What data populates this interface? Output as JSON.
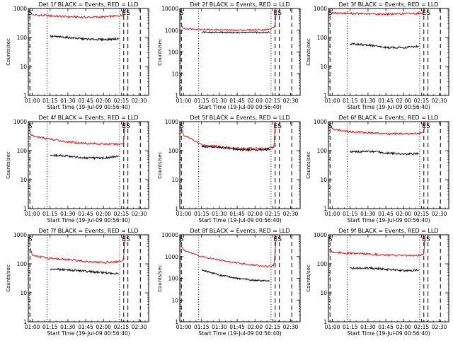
{
  "chart_data": [
    {
      "type": "line",
      "title": "Det 1f BLACK = Events, RED = LLD",
      "xlabel": "Start Time (19-Jul-09 00:56:40)",
      "ylabel": "Counts/sec",
      "yscale": "log",
      "ylim": [
        1,
        1000
      ],
      "xlim": [
        "00:56:40",
        "02:38:00"
      ],
      "x_ticks": [
        "01:00",
        "01:15",
        "01:30",
        "01:45",
        "02:00",
        "02:15",
        "02:30"
      ],
      "y_ticks": [
        "1",
        "10",
        "100",
        "1000"
      ],
      "markers": [
        {
          "label": "S",
          "time": "00:58:00",
          "style": "dashed"
        },
        {
          "label": "",
          "time": "01:12:30",
          "style": "dotted"
        },
        {
          "label": "",
          "time": "02:13:30",
          "style": "dotted"
        },
        {
          "label": "E",
          "time": "02:17:00",
          "style": "dashed"
        },
        {
          "label": "S",
          "time": "02:20:30",
          "style": "dashed"
        },
        {
          "label": "",
          "time": "02:31:00",
          "style": "dashed"
        }
      ],
      "series": [
        {
          "color": "#e00000",
          "x": [
            "01:00",
            "01:15",
            "01:30",
            "01:45",
            "02:00",
            "02:13",
            "02:17",
            "02:19"
          ],
          "y": [
            600,
            560,
            520,
            500,
            510,
            560,
            600,
            1000
          ]
        },
        {
          "color": "#000000",
          "x": [
            "01:15",
            "01:30",
            "01:45",
            "02:00",
            "02:13"
          ],
          "y": [
            110,
            100,
            88,
            85,
            90
          ]
        }
      ]
    },
    {
      "type": "line",
      "title": "Det 2f BLACK = Events, RED = LLD",
      "xlabel": "Start Time (19-Jul-09 00:56:40)",
      "ylabel": "Counts/sec",
      "yscale": "log",
      "ylim": [
        1,
        10000
      ],
      "xlim": [
        "00:56:40",
        "02:38:00"
      ],
      "x_ticks": [
        "01:00",
        "01:15",
        "01:30",
        "01:45",
        "02:00",
        "02:15",
        "02:30"
      ],
      "y_ticks": [
        "1",
        "10",
        "100",
        "1000",
        "10000"
      ],
      "markers": [
        {
          "label": "S",
          "time": "00:58:00",
          "style": "dashed"
        },
        {
          "label": "",
          "time": "01:12:30",
          "style": "dotted"
        },
        {
          "label": "",
          "time": "02:13:30",
          "style": "dotted"
        },
        {
          "label": "E",
          "time": "02:17:00",
          "style": "dashed"
        },
        {
          "label": "S",
          "time": "02:20:30",
          "style": "dashed"
        },
        {
          "label": "",
          "time": "02:31:00",
          "style": "dashed"
        }
      ],
      "series": [
        {
          "color": "#e00000",
          "x": [
            "00:58",
            "01:00",
            "01:15",
            "01:30",
            "01:45",
            "02:00",
            "02:13",
            "02:17",
            "02:18"
          ],
          "y": [
            1500,
            1200,
            1100,
            1050,
            1000,
            1050,
            1100,
            1600,
            9000
          ]
        },
        {
          "color": "#000000",
          "x": [
            "01:15",
            "01:30",
            "01:45",
            "02:00",
            "02:13"
          ],
          "y": [
            800,
            790,
            780,
            790,
            800
          ]
        }
      ]
    },
    {
      "type": "line",
      "title": "Det 3f BLACK = Events, RED = LLD",
      "xlabel": "Start Time (19-Jul-09 00:56:40)",
      "ylabel": "Counts/sec",
      "yscale": "log",
      "ylim": [
        1,
        1000
      ],
      "xlim": [
        "00:56:40",
        "02:38:00"
      ],
      "x_ticks": [
        "01:00",
        "01:15",
        "01:30",
        "01:45",
        "02:00",
        "02:15",
        "02:30"
      ],
      "y_ticks": [
        "1",
        "10",
        "100",
        "1000"
      ],
      "markers": [
        {
          "label": "S",
          "time": "00:58:00",
          "style": "dashed"
        },
        {
          "label": "",
          "time": "01:12:30",
          "style": "dotted"
        },
        {
          "label": "",
          "time": "02:13:30",
          "style": "dotted"
        },
        {
          "label": "E",
          "time": "02:17:00",
          "style": "dashed"
        },
        {
          "label": "S",
          "time": "02:20:30",
          "style": "dashed"
        },
        {
          "label": "",
          "time": "02:31:00",
          "style": "dashed"
        }
      ],
      "series": [
        {
          "color": "#e00000",
          "x": [
            "00:58",
            "01:00",
            "01:15",
            "01:30",
            "01:45",
            "02:00",
            "02:13",
            "02:17",
            "02:18"
          ],
          "y": [
            750,
            700,
            680,
            650,
            640,
            660,
            680,
            700,
            1000
          ]
        },
        {
          "color": "#000000",
          "x": [
            "01:15",
            "01:30",
            "01:45",
            "02:00",
            "02:13"
          ],
          "y": [
            60,
            55,
            45,
            45,
            50
          ]
        }
      ]
    },
    {
      "type": "line",
      "title": "Det 4f BLACK = Events, RED = LLD",
      "xlabel": "Start Time (19-Jul-09 00:56:40)",
      "ylabel": "Counts/sec",
      "yscale": "log",
      "ylim": [
        1,
        1000
      ],
      "xlim": [
        "00:56:40",
        "02:38:00"
      ],
      "x_ticks": [
        "01:00",
        "01:15",
        "01:30",
        "01:45",
        "02:00",
        "02:15",
        "02:30"
      ],
      "y_ticks": [
        "1",
        "10",
        "100",
        "1000"
      ],
      "markers": [
        {
          "label": "S",
          "time": "00:58:00",
          "style": "dashed"
        },
        {
          "label": "",
          "time": "01:12:30",
          "style": "dotted"
        },
        {
          "label": "",
          "time": "02:13:30",
          "style": "dotted"
        },
        {
          "label": "E",
          "time": "02:17:00",
          "style": "dashed"
        },
        {
          "label": "S",
          "time": "02:20:30",
          "style": "dashed"
        },
        {
          "label": "",
          "time": "02:31:00",
          "style": "dashed"
        }
      ],
      "series": [
        {
          "color": "#e00000",
          "x": [
            "00:58",
            "01:00",
            "01:15",
            "01:30",
            "01:45",
            "02:00",
            "02:13",
            "02:17",
            "02:18"
          ],
          "y": [
            400,
            320,
            250,
            200,
            180,
            170,
            165,
            180,
            900
          ]
        },
        {
          "color": "#000000",
          "x": [
            "01:15",
            "01:30",
            "01:45",
            "02:00",
            "02:13"
          ],
          "y": [
            70,
            65,
            55,
            55,
            65
          ]
        }
      ]
    },
    {
      "type": "line",
      "title": "Det 5f BLACK = Events, RED = LLD",
      "xlabel": "Start Time (19-Jul-09 00:56:40)",
      "ylabel": "Counts/sec",
      "yscale": "log",
      "ylim": [
        1,
        1000
      ],
      "xlim": [
        "00:56:40",
        "02:38:00"
      ],
      "x_ticks": [
        "01:00",
        "01:15",
        "01:30",
        "01:45",
        "02:00",
        "02:15",
        "02:30"
      ],
      "y_ticks": [
        "1",
        "10",
        "100",
        "1000"
      ],
      "markers": [
        {
          "label": "S",
          "time": "00:58:00",
          "style": "dashed"
        },
        {
          "label": "",
          "time": "01:12:30",
          "style": "dotted"
        },
        {
          "label": "",
          "time": "02:13:30",
          "style": "dotted"
        },
        {
          "label": "E",
          "time": "02:17:00",
          "style": "dashed"
        },
        {
          "label": "S",
          "time": "02:20:30",
          "style": "dashed"
        },
        {
          "label": "",
          "time": "02:31:00",
          "style": "dashed"
        }
      ],
      "series": [
        {
          "color": "#e00000",
          "x": [
            "00:58",
            "01:00",
            "01:15",
            "01:30",
            "01:45",
            "02:00",
            "02:13",
            "02:16",
            "02:17"
          ],
          "y": [
            600,
            350,
            160,
            140,
            120,
            120,
            125,
            130,
            900
          ]
        },
        {
          "color": "#000000",
          "x": [
            "01:15",
            "01:30",
            "01:45",
            "02:00",
            "02:13"
          ],
          "y": [
            140,
            130,
            110,
            105,
            110
          ]
        }
      ]
    },
    {
      "type": "line",
      "title": "Det 6f BLACK = Events, RED = LLD",
      "xlabel": "Start Time (19-Jul-09 00:56:40)",
      "ylabel": "Counts/sec",
      "yscale": "log",
      "ylim": [
        1,
        1000
      ],
      "xlim": [
        "00:56:40",
        "02:38:00"
      ],
      "x_ticks": [
        "01:00",
        "01:15",
        "01:30",
        "01:45",
        "02:00",
        "02:15",
        "02:30"
      ],
      "y_ticks": [
        "1",
        "10",
        "100",
        "1000"
      ],
      "markers": [
        {
          "label": "S",
          "time": "00:58:00",
          "style": "dashed"
        },
        {
          "label": "",
          "time": "01:12:30",
          "style": "dotted"
        },
        {
          "label": "",
          "time": "02:13:30",
          "style": "dotted"
        },
        {
          "label": "E",
          "time": "02:17:00",
          "style": "dashed"
        },
        {
          "label": "S",
          "time": "02:20:30",
          "style": "dashed"
        },
        {
          "label": "",
          "time": "02:31:00",
          "style": "dashed"
        }
      ],
      "series": [
        {
          "color": "#e00000",
          "x": [
            "00:58",
            "01:00",
            "01:15",
            "01:30",
            "01:45",
            "02:00",
            "02:13",
            "02:17",
            "02:18"
          ],
          "y": [
            700,
            550,
            450,
            420,
            380,
            380,
            390,
            420,
            1000
          ]
        },
        {
          "color": "#000000",
          "x": [
            "01:15",
            "01:30",
            "01:45",
            "02:00",
            "02:13"
          ],
          "y": [
            90,
            95,
            85,
            75,
            80
          ]
        }
      ]
    },
    {
      "type": "line",
      "title": "Det 7f BLACK = Events, RED = LLD",
      "xlabel": "Start Time (19-Jul-09 00:56:40)",
      "ylabel": "Counts/sec",
      "yscale": "log",
      "ylim": [
        1,
        1000
      ],
      "xlim": [
        "00:56:40",
        "02:38:00"
      ],
      "x_ticks": [
        "01:00",
        "01:15",
        "01:30",
        "01:45",
        "02:00",
        "02:15",
        "02:30"
      ],
      "y_ticks": [
        "1",
        "10",
        "100",
        "1000"
      ],
      "markers": [
        {
          "label": "S",
          "time": "00:58:00",
          "style": "dashed"
        },
        {
          "label": "",
          "time": "01:12:30",
          "style": "dotted"
        },
        {
          "label": "",
          "time": "02:13:30",
          "style": "dotted"
        },
        {
          "label": "E",
          "time": "02:17:00",
          "style": "dashed"
        },
        {
          "label": "S",
          "time": "02:20:30",
          "style": "dashed"
        },
        {
          "label": "",
          "time": "02:31:00",
          "style": "dashed"
        }
      ],
      "series": [
        {
          "color": "#e00000",
          "x": [
            "00:58",
            "01:00",
            "01:15",
            "01:30",
            "01:45",
            "02:00",
            "02:13",
            "02:17",
            "02:18"
          ],
          "y": [
            350,
            200,
            150,
            140,
            120,
            110,
            120,
            140,
            900
          ]
        },
        {
          "color": "#000000",
          "x": [
            "01:15",
            "01:30",
            "01:45",
            "02:00",
            "02:13"
          ],
          "y": [
            65,
            62,
            55,
            50,
            45
          ]
        }
      ]
    },
    {
      "type": "line",
      "title": "Det 8f BLACK = Events, RED = LLD",
      "xlabel": "Start Time (19-Jul-09 00:56:40)",
      "ylabel": "Counts/sec",
      "yscale": "log",
      "ylim": [
        1,
        10000
      ],
      "xlim": [
        "00:56:40",
        "02:38:00"
      ],
      "x_ticks": [
        "01:00",
        "01:15",
        "01:30",
        "01:45",
        "02:00",
        "02:15",
        "02:30"
      ],
      "y_ticks": [
        "1",
        "10",
        "100",
        "1000",
        "10000"
      ],
      "markers": [
        {
          "label": "S",
          "time": "00:58:00",
          "style": "dashed"
        },
        {
          "label": "",
          "time": "01:12:30",
          "style": "dotted"
        },
        {
          "label": "",
          "time": "02:13:30",
          "style": "dotted"
        },
        {
          "label": "E",
          "time": "02:17:00",
          "style": "dashed"
        },
        {
          "label": "S",
          "time": "02:20:30",
          "style": "dashed"
        },
        {
          "label": "",
          "time": "02:31:00",
          "style": "dashed"
        }
      ],
      "series": [
        {
          "color": "#e00000",
          "x": [
            "00:58",
            "01:00",
            "01:15",
            "01:30",
            "01:45",
            "02:00",
            "02:13",
            "02:16",
            "02:18"
          ],
          "y": [
            3000,
            2000,
            1000,
            700,
            500,
            400,
            350,
            400,
            9000
          ]
        },
        {
          "color": "#000000",
          "x": [
            "01:15",
            "01:30",
            "01:45",
            "02:00",
            "02:13"
          ],
          "y": [
            250,
            140,
            100,
            80,
            75
          ]
        }
      ]
    },
    {
      "type": "line",
      "title": "Det 9f BLACK = Events, RED = LLD",
      "xlabel": "Start Time (19-Jul-09 00:56:40)",
      "ylabel": "Counts/sec",
      "yscale": "log",
      "ylim": [
        1,
        1000
      ],
      "xlim": [
        "00:56:40",
        "02:38:00"
      ],
      "x_ticks": [
        "01:00",
        "01:15",
        "01:30",
        "01:45",
        "02:00",
        "02:15",
        "02:30"
      ],
      "y_ticks": [
        "1",
        "10",
        "100",
        "1000"
      ],
      "markers": [
        {
          "label": "S",
          "time": "00:58:00",
          "style": "dashed"
        },
        {
          "label": "",
          "time": "01:12:30",
          "style": "dotted"
        },
        {
          "label": "",
          "time": "02:13:30",
          "style": "dotted"
        },
        {
          "label": "E",
          "time": "02:17:00",
          "style": "dashed"
        },
        {
          "label": "S",
          "time": "02:20:30",
          "style": "dashed"
        },
        {
          "label": "",
          "time": "02:31:00",
          "style": "dashed"
        }
      ],
      "series": [
        {
          "color": "#e00000",
          "x": [
            "00:58",
            "01:00",
            "01:15",
            "01:30",
            "01:45",
            "02:00",
            "02:13",
            "02:17",
            "02:18"
          ],
          "y": [
            350,
            250,
            230,
            220,
            200,
            190,
            200,
            210,
            900
          ]
        },
        {
          "color": "#000000",
          "x": [
            "01:15",
            "01:30",
            "01:45",
            "02:00",
            "02:13"
          ],
          "y": [
            70,
            72,
            65,
            58,
            60
          ]
        }
      ]
    }
  ]
}
